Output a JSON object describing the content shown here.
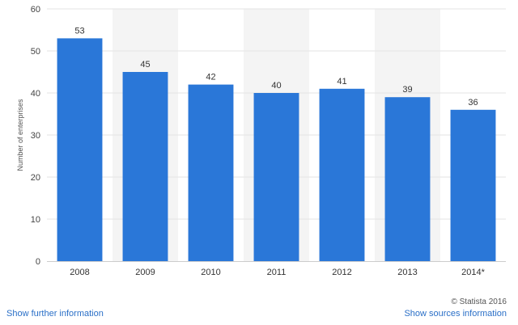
{
  "chart_data": {
    "type": "bar",
    "categories": [
      "2008",
      "2009",
      "2010",
      "2011",
      "2012",
      "2013",
      "2014*"
    ],
    "values": [
      53,
      45,
      42,
      40,
      41,
      39,
      36
    ],
    "data_labels": [
      "53",
      "45",
      "42",
      "40",
      "41",
      "39",
      "36"
    ],
    "title": "",
    "xlabel": "",
    "ylabel": "Number of enterprises",
    "ylim": [
      0,
      60
    ],
    "yticks": [
      0,
      10,
      20,
      30,
      40,
      50,
      60
    ],
    "ytick_labels": [
      "0",
      "10",
      "20",
      "30",
      "40",
      "50",
      "60"
    ],
    "grid": true,
    "alternating_band_shading": true,
    "bar_color": "#2a77d8",
    "band_color": "#f4f4f4"
  },
  "footer": {
    "copyright": "© Statista 2016",
    "left_link": "Show further information",
    "right_link": "Show sources information"
  }
}
